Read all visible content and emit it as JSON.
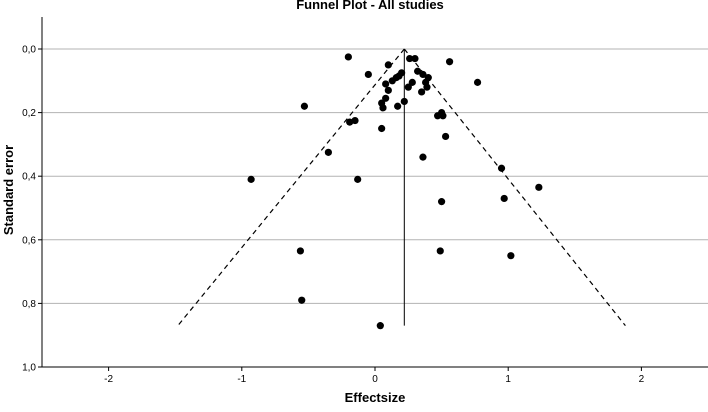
{
  "chart_data": {
    "type": "scatter",
    "title": "Funnel Plot - All studies",
    "xlabel": "Effectsize",
    "ylabel": "Standard error",
    "xlim": [
      -2.5,
      2.5
    ],
    "ylim": [
      0,
      1.0
    ],
    "y_reversed": true,
    "x_ticks": [
      -2,
      -1,
      0,
      1,
      2
    ],
    "x_tick_labels": [
      "-2",
      "-1",
      "0",
      "1",
      "2"
    ],
    "y_ticks": [
      0,
      0.2,
      0.4,
      0.6,
      0.8,
      1.0
    ],
    "y_tick_labels": [
      "0,0",
      "0,2",
      "0,4",
      "0,6",
      "0,8",
      "1,0"
    ],
    "grid": "horizontal",
    "pooled_effect": 0.22,
    "funnel": {
      "apex": [
        0.22,
        0.0
      ],
      "left_end": [
        -1.48,
        0.87
      ],
      "right_end": [
        1.88,
        0.87
      ]
    },
    "points": [
      {
        "x": -0.2,
        "y": 0.025
      },
      {
        "x": 0.26,
        "y": 0.03
      },
      {
        "x": 0.3,
        "y": 0.03
      },
      {
        "x": 0.56,
        "y": 0.04
      },
      {
        "x": 0.1,
        "y": 0.05
      },
      {
        "x": 0.32,
        "y": 0.07
      },
      {
        "x": -0.05,
        "y": 0.08
      },
      {
        "x": 0.2,
        "y": 0.075
      },
      {
        "x": 0.16,
        "y": 0.09
      },
      {
        "x": 0.18,
        "y": 0.085
      },
      {
        "x": 0.36,
        "y": 0.08
      },
      {
        "x": 0.4,
        "y": 0.09
      },
      {
        "x": 0.13,
        "y": 0.1
      },
      {
        "x": 0.08,
        "y": 0.11
      },
      {
        "x": 0.77,
        "y": 0.105
      },
      {
        "x": 0.38,
        "y": 0.105
      },
      {
        "x": 0.28,
        "y": 0.105
      },
      {
        "x": 0.25,
        "y": 0.12
      },
      {
        "x": 0.39,
        "y": 0.12
      },
      {
        "x": 0.1,
        "y": 0.13
      },
      {
        "x": 0.35,
        "y": 0.135
      },
      {
        "x": 0.08,
        "y": 0.155
      },
      {
        "x": 0.22,
        "y": 0.165
      },
      {
        "x": 0.05,
        "y": 0.17
      },
      {
        "x": 0.17,
        "y": 0.18
      },
      {
        "x": 0.06,
        "y": 0.185
      },
      {
        "x": -0.53,
        "y": 0.18
      },
      {
        "x": 0.5,
        "y": 0.2
      },
      {
        "x": 0.47,
        "y": 0.21
      },
      {
        "x": 0.51,
        "y": 0.21
      },
      {
        "x": -0.15,
        "y": 0.225
      },
      {
        "x": -0.19,
        "y": 0.23
      },
      {
        "x": 0.05,
        "y": 0.25
      },
      {
        "x": 0.53,
        "y": 0.275
      },
      {
        "x": -0.35,
        "y": 0.325
      },
      {
        "x": 0.36,
        "y": 0.34
      },
      {
        "x": 0.95,
        "y": 0.375
      },
      {
        "x": -0.93,
        "y": 0.41
      },
      {
        "x": -0.13,
        "y": 0.41
      },
      {
        "x": 1.23,
        "y": 0.435
      },
      {
        "x": 0.97,
        "y": 0.47
      },
      {
        "x": 0.5,
        "y": 0.48
      },
      {
        "x": -0.56,
        "y": 0.635
      },
      {
        "x": 0.49,
        "y": 0.635
      },
      {
        "x": 1.02,
        "y": 0.65
      },
      {
        "x": -0.55,
        "y": 0.79
      },
      {
        "x": 0.04,
        "y": 0.87
      }
    ],
    "colors": {
      "points": "#000000",
      "grid": "#b3b3b3",
      "axis": "#000000"
    }
  }
}
